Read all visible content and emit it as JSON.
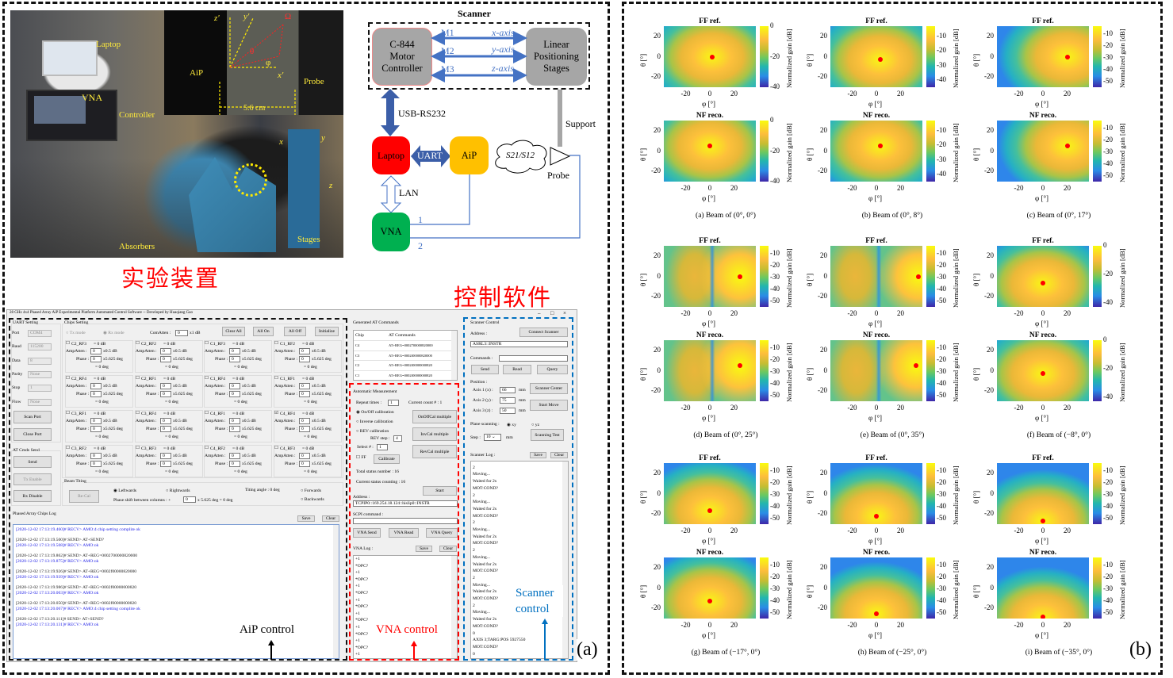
{
  "photo": {
    "caption_cn": "实验装置",
    "labels": {
      "laptop": "Laptop",
      "vna": "VNA",
      "controller": "Controller",
      "aip": "AiP",
      "probe": "Probe",
      "distance": "5.6 cm",
      "absorbers": "Absorbers",
      "stages": "Stages"
    },
    "axes": {
      "z_prime": "z'",
      "y_prime": "y'",
      "x_prime": "x'",
      "theta": "θ",
      "phi": "φ",
      "omega": "Ω",
      "x": "x",
      "y": "y",
      "z": "z"
    }
  },
  "diagram": {
    "scanner_title": "Scanner",
    "motor_controller": "C-844 Motor Controller",
    "stages": "Linear Positioning Stages",
    "links": [
      {
        "motor": "M1",
        "axis": "x-axis"
      },
      {
        "motor": "M2",
        "axis": "y-axis"
      },
      {
        "motor": "M3",
        "axis": "z-axis"
      }
    ],
    "usb": "USB-RS232",
    "support": "Support",
    "laptop": "Laptop",
    "uart": "UART",
    "aip": "AiP",
    "sparam": "S21/S12",
    "probe": "Probe",
    "lan": "LAN",
    "vna": "VNA",
    "port1": "1",
    "port2": "2",
    "colors": {
      "laptop": "#ff0000",
      "aip": "#ffc000",
      "vna": "#00b050",
      "gray": "#a6a6a6",
      "arrow": "#4472c4"
    }
  },
  "software_caption_cn": "控制软件",
  "software": {
    "title": "28 GHz 4x4 Phased Array AiP Experimental Platform Automated Control Software -- Developed by Huaqiang Gao",
    "window_controls": [
      "–",
      "□",
      "×"
    ],
    "uart": {
      "title": "UART Setting",
      "fields": [
        {
          "label": "Port",
          "value": "COM4"
        },
        {
          "label": "Baud",
          "value": "115200"
        },
        {
          "label": "Data",
          "value": "8"
        },
        {
          "label": "Parity",
          "value": "None"
        },
        {
          "label": "Stop",
          "value": "1"
        },
        {
          "label": "Flow",
          "value": "None"
        }
      ],
      "scan_port": "Scan Port",
      "close_port": "Close Port",
      "at_title": "AT Cmds Send",
      "send": "Send",
      "tx_enable": "Tx Enable",
      "rx_disable": "Rx Disable"
    },
    "chips": {
      "title": "Chips Setting",
      "tx_mode": "Tx mode",
      "rx_mode": "Rx mode",
      "comatten_label": "ComAtten :",
      "comatten_value": "0",
      "comatten_unit": "x1 dB",
      "clear_all": "Clear All",
      "all_on": "All On",
      "all_off": "All Off",
      "initialize": "Initialize",
      "db_text": "= 0 dB",
      "amp_label": "AmpAtten :",
      "amp_value": "0",
      "amp_unit": "x0.5 dB",
      "phase_label": "Phase :",
      "phase_value": "0",
      "phase_unit": "x5.625 deg",
      "deg_text": "= 0 deg",
      "items": [
        {
          "name": "C2_RF3",
          "checked": false
        },
        {
          "name": "C2_RF2",
          "checked": false
        },
        {
          "name": "C1_RF3",
          "checked": false
        },
        {
          "name": "C1_RF2",
          "checked": false
        },
        {
          "name": "C2_RF4",
          "checked": false
        },
        {
          "name": "C2_RF1",
          "checked": false
        },
        {
          "name": "C1_RF4",
          "checked": false
        },
        {
          "name": "C1_RF1",
          "checked": false
        },
        {
          "name": "C3_RF1",
          "checked": false
        },
        {
          "name": "C3_RF4",
          "checked": false
        },
        {
          "name": "C4_RF1",
          "checked": false
        },
        {
          "name": "C4_RF4",
          "checked": true
        },
        {
          "name": "C3_RF2",
          "checked": false
        },
        {
          "name": "C3_RF3",
          "checked": false
        },
        {
          "name": "C4_RF2",
          "checked": false
        },
        {
          "name": "C4_RF3",
          "checked": false
        }
      ]
    },
    "beam": {
      "title": "Beam Titing",
      "recal": "Re-Cal",
      "leftwards": "Leftwards",
      "rightwards": "Rightwards",
      "tilting": "Titing angle : 0 deg",
      "forwards": "Forwards",
      "backwards": "Backwards",
      "phase_shift_label": "Phase shift between columns : +",
      "phase_shift_value": "0",
      "phase_shift_unit": "x 5.625 deg = 0 deg"
    },
    "aip_log": {
      "title": "Phased Array Chips Log",
      "save": "Save",
      "clear": "Clear",
      "lines": [
        {
          "t": "[2020-12-02 17:13:19.460]# RECV> AMO:4 chip setting complite ok",
          "recv": true
        },
        {
          "t": "[2020-12-02 17:13:19.500]# SEND> AT+SEND?",
          "recv": false
        },
        {
          "t": "[2020-12-02 17:13:19.508]# RECV> AMO:ok",
          "recv": true
        },
        {
          "t": "[2020-12-02 17:13:19.862]# SEND> AT+REG=0002700000820000",
          "recv": false
        },
        {
          "t": "[2020-12-02 17:13:19.875]# RECV> AMO:ok",
          "recv": true
        },
        {
          "t": "[2020-12-02 17:13:19.926]# SEND> AT+REG=0002f00000820000",
          "recv": false
        },
        {
          "t": "[2020-12-02 17:13:19.939]# RECV> AMO:ok",
          "recv": true
        },
        {
          "t": "[2020-12-02 17:13:19.986]# SEND> AT+REG=0002f00000000820",
          "recv": false
        },
        {
          "t": "[2020-12-02 17:13:20.003]# RECV> AMO:ok",
          "recv": true
        },
        {
          "t": "[2020-12-02 17:13:20.050]# SEND> AT+REG=0002f00000000820",
          "recv": false
        },
        {
          "t": "[2020-12-02 17:13:20.067]# RECV> AMO:4 chip setting complite ok",
          "recv": true
        },
        {
          "t": "[2020-12-02 17:13:20.111]# SEND> AT+SEND?",
          "recv": false
        },
        {
          "t": "[2020-12-02 17:13:20.131]# RECV> AMO:ok",
          "recv": true
        }
      ]
    },
    "at_table": {
      "title": "Generated AT Commands",
      "headers": [
        "Chip",
        "AT Commands"
      ],
      "rows": [
        [
          "C4",
          "AT+REG=0002700000820000"
        ],
        [
          "C3",
          "AT+REG=0002f00000820000"
        ],
        [
          "C2",
          "AT+REG=0002f00000000820"
        ],
        [
          "C1",
          "AT+REG=0002f00000000820"
        ]
      ]
    },
    "auto": {
      "title": "Automatic Measurement",
      "repeat_label": "Repeat times :",
      "repeat_value": "1",
      "current_count": "Current count # : 1",
      "onoff": "On/Off calibration",
      "inverse": "Inverse calibration",
      "rev": "REV calibration",
      "rev_step_label": "REV step :",
      "rev_step_value": "4",
      "select_label": "Select # :",
      "select_value": "1",
      "ff": "FF",
      "calibrate": "Calibrate",
      "onoff_multi": "OnOffCal multiple",
      "inv_multi": "InvCal multiple",
      "rev_multi": "RevCal multiple",
      "total": "Total status number : 16",
      "current": "Current status counting : 16",
      "start": "Start",
      "address_label": "Address :",
      "address_value": "TCPIP0::169.254.18.124::hislip0::INSTR",
      "scpi_label": "SCPI command :",
      "scpi_value": "",
      "vna_send": "VNA Send",
      "vna_read": "VNA Read",
      "vna_query": "VNA Query",
      "log_title": "VNA Log :",
      "save": "Save",
      "clear": "Clear",
      "log": [
        "+1",
        "*OPC?",
        "+1",
        "*OPC?",
        "+1",
        "*OPC?",
        "+1",
        "*OPC?",
        "+1",
        "*OPC?",
        "+1",
        "*OPC?",
        "+1",
        "*OPC?",
        "+1"
      ]
    },
    "scanner": {
      "title": "Scanner Control",
      "address_label": "Address :",
      "connect": "Connect Scanner",
      "address_value": "ASRL3::INSTR",
      "commands_label": "Commands :",
      "commands_value": "",
      "send": "Send",
      "read": "Read",
      "query": "Query",
      "position": "Position :",
      "axes": [
        {
          "label": "Axis 1 (x) :",
          "value": "66",
          "unit": "mm"
        },
        {
          "label": "Axis 2 (y) :",
          "value": "75",
          "unit": "mm"
        },
        {
          "label": "Axis 3 (z) :",
          "value": "50",
          "unit": "mm"
        }
      ],
      "center": "Scanner Center",
      "start_move": "Start Move",
      "plane_label": "Plane scanning :",
      "xy": "xy",
      "yz": "yz",
      "step_label": "Step :",
      "step_value": "10",
      "step_unit": "mm",
      "scanning_test": "Scanning Test",
      "log_title": "Scanner Log :",
      "save": "Save",
      "clear": "Clear",
      "log": [
        "MOT:COND?",
        "2",
        "Moving...",
        "Waited for 2s",
        "MOT:COND?",
        "2",
        "Moving...",
        "Waited for 2s",
        "MOT:COND?",
        "2",
        "Moving...",
        "Waited for 2s",
        "MOT:COND?",
        "2",
        "Moving...",
        "Waited for 2s",
        "MOT:COND?",
        "2",
        "Moving...",
        "Waited for 2s",
        "MOT:COND?",
        "2",
        "Moving...",
        "Waited for 2s",
        "MOT:COND?",
        "0",
        "AXIS 3;TARG:POS 5927550",
        "MOT:COND?",
        "0"
      ]
    }
  },
  "annotations": {
    "aip_control": "AiP control",
    "vna_control": "VNA control",
    "scanner_control": "Scanner control",
    "colors": {
      "aip": "#000000",
      "vna": "#ff0000",
      "scanner": "#0070c0"
    }
  },
  "panel_labels": {
    "a": "(a)",
    "b": "(b)"
  },
  "chart_data": [
    {
      "type": "heatmap",
      "caption": "(a) Beam of (0°, 0°)",
      "cbar_ticks": [
        0,
        -20,
        -40
      ],
      "cbar_range": [
        0,
        -40
      ],
      "ff": {
        "title": "FF ref.",
        "peak": [
          2,
          0
        ]
      },
      "nf": {
        "title": "NF reco.",
        "peak": [
          0,
          5
        ]
      }
    },
    {
      "type": "heatmap",
      "caption": "(b) Beam of (0°, 8°)",
      "cbar_ticks": [
        -10,
        -20,
        -30,
        -40
      ],
      "cbar_range": [
        -3,
        -45
      ],
      "ff": {
        "title": "FF ref.",
        "peak": [
          3,
          -3
        ]
      },
      "nf": {
        "title": "NF reco.",
        "peak": [
          3,
          5
        ]
      }
    },
    {
      "type": "heatmap",
      "caption": "(c) Beam of (0°, 17°)",
      "cbar_ticks": [
        -10,
        -20,
        -30,
        -40,
        -50
      ],
      "cbar_range": [
        -3,
        -55
      ],
      "ff": {
        "title": "FF ref.",
        "peak": [
          20,
          0
        ]
      },
      "nf": {
        "title": "NF reco.",
        "peak": [
          20,
          5
        ]
      }
    },
    {
      "type": "heatmap",
      "caption": "(d) Beam of (0°, 25°)",
      "cbar_ticks": [
        -10,
        -20,
        -30,
        -40,
        -50
      ],
      "cbar_range": [
        -3,
        -55
      ],
      "ff": {
        "title": "FF ref.",
        "peak": [
          25,
          0
        ]
      },
      "nf": {
        "title": "NF reco.",
        "peak": [
          25,
          5
        ]
      }
    },
    {
      "type": "heatmap",
      "caption": "(e) Beam of (0°, 35°)",
      "cbar_ticks": [
        -10,
        -20,
        -30,
        -40,
        -50
      ],
      "cbar_range": [
        -3,
        -55
      ],
      "ff": {
        "title": "FF ref.",
        "peak": [
          35,
          0
        ]
      },
      "nf": {
        "title": "NF reco.",
        "peak": [
          33,
          5
        ]
      }
    },
    {
      "type": "heatmap",
      "caption": "(f) Beam of (−8°, 0°)",
      "cbar_ticks": [
        0,
        -20,
        -40
      ],
      "cbar_range": [
        0,
        -43
      ],
      "ff": {
        "title": "FF ref.",
        "peak": [
          0,
          -7
        ]
      },
      "nf": {
        "title": "NF reco.",
        "peak": [
          0,
          -3
        ]
      }
    },
    {
      "type": "heatmap",
      "caption": "(g) Beam of (−17°, 0°)",
      "cbar_ticks": [
        -10,
        -20,
        -30,
        -40,
        -50
      ],
      "cbar_range": [
        -3,
        -55
      ],
      "ff": {
        "title": "FF ref.",
        "peak": [
          0,
          -17
        ]
      },
      "nf": {
        "title": "NF reco.",
        "peak": [
          0,
          -13
        ]
      }
    },
    {
      "type": "heatmap",
      "caption": "(h) Beam of (−25°, 0°)",
      "cbar_ticks": [
        -10,
        -20,
        -30,
        -40,
        -50
      ],
      "cbar_range": [
        -3,
        -55
      ],
      "ff": {
        "title": "FF ref.",
        "peak": [
          0,
          -22
        ]
      },
      "nf": {
        "title": "NF reco.",
        "peak": [
          0,
          -25
        ]
      }
    },
    {
      "type": "heatmap",
      "caption": "(i) Beam of (−35°, 0°)",
      "cbar_ticks": [
        -10,
        -20,
        -30,
        -40,
        -50
      ],
      "cbar_range": [
        -3,
        -55
      ],
      "ff": {
        "title": "FF ref.",
        "peak": [
          0,
          -27
        ]
      },
      "nf": {
        "title": "NF reco.",
        "peak": [
          0,
          -30
        ]
      }
    }
  ],
  "chart_common": {
    "xlabel": "φ [°]",
    "ylabel": "θ [°]",
    "cbar_label": "Normalized gain [dB]",
    "xticks": [
      -20,
      0,
      20
    ],
    "yticks": [
      20,
      0,
      -20
    ],
    "xlim": [
      -38,
      38
    ],
    "ylim": [
      -30,
      30
    ]
  }
}
